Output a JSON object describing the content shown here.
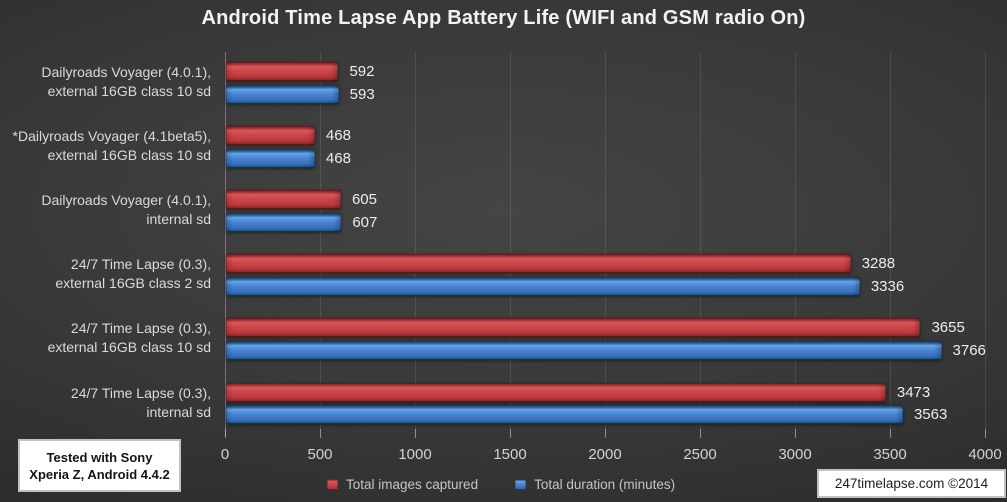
{
  "title": "Android Time Lapse App Battery Life (WIFI and GSM radio On)",
  "chart_data": {
    "type": "bar",
    "orientation": "horizontal",
    "title": "Android Time Lapse App Battery Life (WIFI and GSM radio On)",
    "categories": [
      [
        "Dailyroads Voyager (4.0.1),",
        "external 16GB class 10 sd"
      ],
      [
        "*Dailyroads Voyager (4.1beta5),",
        "external 16GB class 10 sd"
      ],
      [
        "Dailyroads Voyager (4.0.1),",
        "internal sd"
      ],
      [
        "24/7 Time Lapse (0.3),",
        "external 16GB class 2 sd"
      ],
      [
        "24/7 Time Lapse (0.3),",
        "external 16GB class 10 sd"
      ],
      [
        "24/7 Time Lapse (0.3),",
        "internal sd"
      ]
    ],
    "series": [
      {
        "name": "Total images captured",
        "color": "#c64145",
        "values": [
          592,
          468,
          605,
          3288,
          3655,
          3473
        ]
      },
      {
        "name": "Total duration (minutes)",
        "color": "#3f7ecb",
        "values": [
          593,
          468,
          607,
          3336,
          3766,
          3563
        ]
      }
    ],
    "xlim": [
      0,
      4000
    ],
    "x_tick_step": 500,
    "grid": true,
    "legend_position": "bottom",
    "data_labels": true
  },
  "notes": {
    "device": {
      "line1": "Tested with Sony",
      "line2": "Xperia Z, Android 4.4.2"
    },
    "credit": "247timelapse.com ©2014"
  },
  "colors": {
    "background_center": "#454545",
    "background_edge": "#1d1d1d",
    "bar_red": "#c64145",
    "bar_blue": "#3f7ecb",
    "title_text": "#f3f3f3",
    "label_text": "#dadada"
  }
}
